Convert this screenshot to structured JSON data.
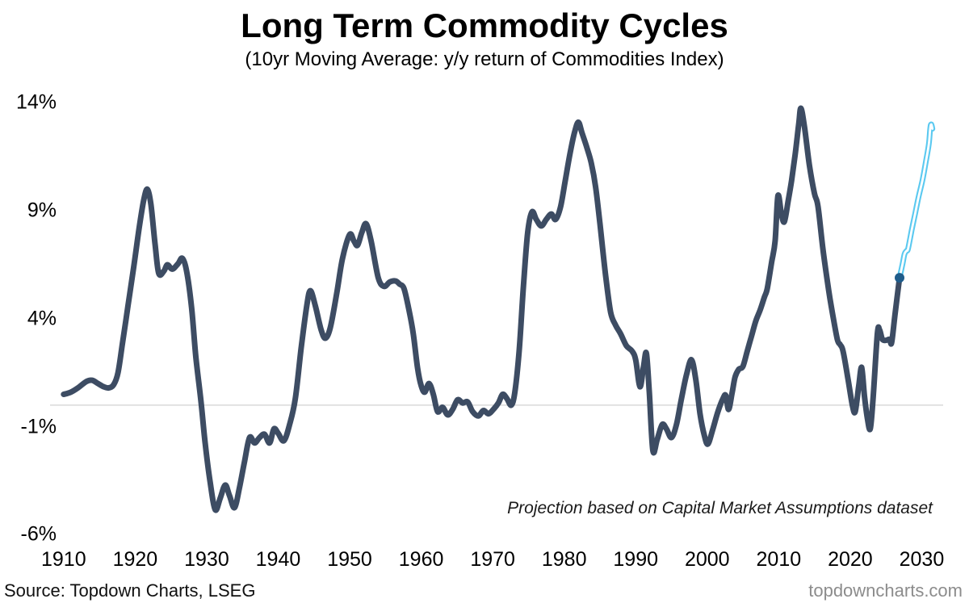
{
  "chart_data": {
    "type": "line",
    "title": "Long Term Commodity Cycles",
    "subtitle": "(10yr Moving Average: y/y return of Commodities Index)",
    "annotation": "Projection based on Capital Market Assumptions dataset",
    "source": "Source: Topdown Charts, LSEG",
    "watermark": "topdowncharts.com",
    "xlabel": "",
    "ylabel": "",
    "axes": {
      "xlim": [
        1908.1,
        2033.0
      ],
      "ylim": [
        -6.21,
        14.65
      ],
      "x_ticks": [
        1910,
        1920,
        1930,
        1940,
        1950,
        1960,
        1970,
        1980,
        1990,
        2000,
        2010,
        2020,
        2030
      ],
      "y_ticks": [
        {
          "label": "14%",
          "value": 14
        },
        {
          "label": "9%",
          "value": 9
        },
        {
          "label": "4%",
          "value": 4
        },
        {
          "label": "-1%",
          "value": -1
        },
        {
          "label": "-6%",
          "value": -6
        }
      ],
      "grid": "single horizontal gridline at zero only",
      "zero_gridline_value": 0,
      "gridline_color": "#d9d9d9",
      "legend": "none"
    },
    "series": [
      {
        "name": "10yr moving average y/y return (history)",
        "color": "#3d4c63",
        "style": "solid",
        "stroke_width": 7,
        "points": [
          [
            1910,
            0.5
          ],
          [
            1911,
            0.6
          ],
          [
            1912,
            0.8
          ],
          [
            1913.2,
            1.1
          ],
          [
            1914,
            1.15
          ],
          [
            1914.8,
            1.0
          ],
          [
            1915.6,
            0.85
          ],
          [
            1916.3,
            0.8
          ],
          [
            1917,
            0.95
          ],
          [
            1917.6,
            1.5
          ],
          [
            1918.2,
            2.8
          ],
          [
            1919,
            4.6
          ],
          [
            1919.8,
            6.4
          ],
          [
            1920.6,
            8.3
          ],
          [
            1921.2,
            9.5
          ],
          [
            1921.7,
            10.0
          ],
          [
            1922.2,
            9.3
          ],
          [
            1922.8,
            7.4
          ],
          [
            1923.3,
            6.1
          ],
          [
            1924,
            6.2
          ],
          [
            1924.5,
            6.5
          ],
          [
            1925.2,
            6.3
          ],
          [
            1926,
            6.55
          ],
          [
            1926.6,
            6.8
          ],
          [
            1927.2,
            6.2
          ],
          [
            1927.9,
            4.5
          ],
          [
            1928.5,
            2.2
          ],
          [
            1929.2,
            0.2
          ],
          [
            1929.8,
            -1.8
          ],
          [
            1930.5,
            -3.6
          ],
          [
            1931.2,
            -4.85
          ],
          [
            1931.9,
            -4.3
          ],
          [
            1932.6,
            -3.7
          ],
          [
            1933.2,
            -4.2
          ],
          [
            1933.9,
            -4.75
          ],
          [
            1934.6,
            -3.8
          ],
          [
            1935.3,
            -2.6
          ],
          [
            1936,
            -1.5
          ],
          [
            1936.7,
            -1.75
          ],
          [
            1937.4,
            -1.5
          ],
          [
            1938.1,
            -1.35
          ],
          [
            1938.8,
            -1.75
          ],
          [
            1939.4,
            -1.1
          ],
          [
            1940,
            -1.3
          ],
          [
            1940.8,
            -1.65
          ],
          [
            1941.6,
            -0.9
          ],
          [
            1942.4,
            0.3
          ],
          [
            1943.2,
            2.6
          ],
          [
            1944,
            4.6
          ],
          [
            1944.5,
            5.3
          ],
          [
            1945.2,
            4.6
          ],
          [
            1946,
            3.5
          ],
          [
            1946.6,
            3.1
          ],
          [
            1947.3,
            3.6
          ],
          [
            1948.2,
            5.2
          ],
          [
            1949,
            6.8
          ],
          [
            1950,
            7.9
          ],
          [
            1950.6,
            7.6
          ],
          [
            1951.1,
            7.4
          ],
          [
            1951.7,
            8.0
          ],
          [
            1952.3,
            8.4
          ],
          [
            1953,
            7.6
          ],
          [
            1954,
            5.9
          ],
          [
            1954.8,
            5.5
          ],
          [
            1955.6,
            5.7
          ],
          [
            1956.4,
            5.75
          ],
          [
            1957,
            5.6
          ],
          [
            1957.6,
            5.4
          ],
          [
            1958.3,
            4.4
          ],
          [
            1958.9,
            3.3
          ],
          [
            1959.5,
            1.7
          ],
          [
            1960,
            0.9
          ],
          [
            1960.5,
            0.6
          ],
          [
            1961.1,
            1.0
          ],
          [
            1961.7,
            0.5
          ],
          [
            1962.3,
            -0.3
          ],
          [
            1963,
            -0.1
          ],
          [
            1963.7,
            -0.45
          ],
          [
            1964.4,
            -0.2
          ],
          [
            1965.1,
            0.25
          ],
          [
            1965.8,
            0.1
          ],
          [
            1966.5,
            0.15
          ],
          [
            1967.2,
            -0.3
          ],
          [
            1968,
            -0.5
          ],
          [
            1968.7,
            -0.25
          ],
          [
            1969.4,
            -0.4
          ],
          [
            1970.1,
            -0.2
          ],
          [
            1970.8,
            0.1
          ],
          [
            1971.4,
            0.5
          ],
          [
            1972,
            0.3
          ],
          [
            1972.6,
            0.0
          ],
          [
            1973.1,
            0.6
          ],
          [
            1973.7,
            2.5
          ],
          [
            1974.3,
            5.5
          ],
          [
            1974.9,
            8.0
          ],
          [
            1975.5,
            8.95
          ],
          [
            1976.1,
            8.6
          ],
          [
            1976.8,
            8.3
          ],
          [
            1977.5,
            8.6
          ],
          [
            1978.2,
            8.85
          ],
          [
            1978.8,
            8.6
          ],
          [
            1979.5,
            9.2
          ],
          [
            1980.2,
            10.5
          ],
          [
            1980.9,
            11.8
          ],
          [
            1981.5,
            12.7
          ],
          [
            1982,
            13.1
          ],
          [
            1982.5,
            12.6
          ],
          [
            1983.2,
            11.9
          ],
          [
            1983.8,
            11.2
          ],
          [
            1984.4,
            10.1
          ],
          [
            1985,
            8.4
          ],
          [
            1985.8,
            6.0
          ],
          [
            1986.5,
            4.3
          ],
          [
            1987.2,
            3.7
          ],
          [
            1987.9,
            3.3
          ],
          [
            1988.7,
            2.75
          ],
          [
            1989.5,
            2.5
          ],
          [
            1990,
            2.1
          ],
          [
            1990.6,
            0.85
          ],
          [
            1991.1,
            1.8
          ],
          [
            1991.5,
            2.4
          ],
          [
            1991.9,
            0.6
          ],
          [
            1992.4,
            -2.1
          ],
          [
            1993,
            -1.6
          ],
          [
            1993.7,
            -0.9
          ],
          [
            1994.3,
            -1.1
          ],
          [
            1995,
            -1.5
          ],
          [
            1995.7,
            -0.9
          ],
          [
            1996.4,
            0.3
          ],
          [
            1997.1,
            1.4
          ],
          [
            1997.8,
            2.1
          ],
          [
            1998.4,
            1.2
          ],
          [
            1999,
            -0.4
          ],
          [
            1999.6,
            -1.4
          ],
          [
            2000.1,
            -1.8
          ],
          [
            2000.8,
            -1.1
          ],
          [
            2001.5,
            -0.3
          ],
          [
            2002.2,
            0.3
          ],
          [
            2002.6,
            0.45
          ],
          [
            2003,
            -0.2
          ],
          [
            2003.5,
            0.6
          ],
          [
            2003.9,
            1.3
          ],
          [
            2004.4,
            1.65
          ],
          [
            2005,
            1.8
          ],
          [
            2005.6,
            2.5
          ],
          [
            2006.2,
            3.2
          ],
          [
            2006.8,
            3.9
          ],
          [
            2007.4,
            4.4
          ],
          [
            2008,
            5.0
          ],
          [
            2008.4,
            5.4
          ],
          [
            2009,
            6.6
          ],
          [
            2009.5,
            7.6
          ],
          [
            2009.9,
            9.7
          ],
          [
            2010.4,
            8.8
          ],
          [
            2010.8,
            8.5
          ],
          [
            2011.3,
            9.4
          ],
          [
            2011.8,
            10.4
          ],
          [
            2012.3,
            11.6
          ],
          [
            2012.8,
            13.0
          ],
          [
            2013.1,
            13.75
          ],
          [
            2013.6,
            12.9
          ],
          [
            2014.3,
            11.1
          ],
          [
            2015,
            9.8
          ],
          [
            2015.5,
            9.2
          ],
          [
            2016.2,
            7.2
          ],
          [
            2017,
            5.3
          ],
          [
            2017.5,
            4.3
          ],
          [
            2018.2,
            3.05
          ],
          [
            2018.6,
            2.8
          ],
          [
            2019,
            2.5
          ],
          [
            2019.7,
            1.2
          ],
          [
            2020.3,
            0.0
          ],
          [
            2020.7,
            -0.3
          ],
          [
            2021.2,
            0.9
          ],
          [
            2021.6,
            1.75
          ],
          [
            2022,
            0.4
          ],
          [
            2022.4,
            -0.6
          ],
          [
            2022.8,
            -1.1
          ],
          [
            2023.2,
            0.3
          ],
          [
            2023.8,
            3.3
          ],
          [
            2024.1,
            3.5
          ],
          [
            2024.5,
            3.05
          ],
          [
            2025,
            3.0
          ],
          [
            2025.5,
            3.05
          ],
          [
            2025.8,
            2.9
          ],
          [
            2026.3,
            4.3
          ],
          [
            2026.9,
            5.9
          ]
        ]
      },
      {
        "name": "Projection",
        "color": "#5bc9f0",
        "style": "outlined-tube",
        "stroke_width": 7,
        "inner_color": "#ffffff",
        "inner_width": 2.8,
        "points": [
          [
            2026.9,
            5.9
          ],
          [
            2027.3,
            6.5
          ],
          [
            2027.6,
            7.0
          ],
          [
            2027.9,
            7.15
          ],
          [
            2028.1,
            7.25
          ],
          [
            2028.6,
            8.1
          ],
          [
            2029.1,
            8.9
          ],
          [
            2029.6,
            9.7
          ],
          [
            2030.1,
            10.4
          ],
          [
            2030.6,
            11.3
          ],
          [
            2031.0,
            12.1
          ],
          [
            2031.2,
            12.85
          ],
          [
            2031.35,
            13.0
          ],
          [
            2031.5,
            12.8
          ]
        ]
      }
    ],
    "junction_marker": {
      "x": 2026.9,
      "y": 5.9,
      "color": "#1f5c8b",
      "radius": 6
    }
  }
}
